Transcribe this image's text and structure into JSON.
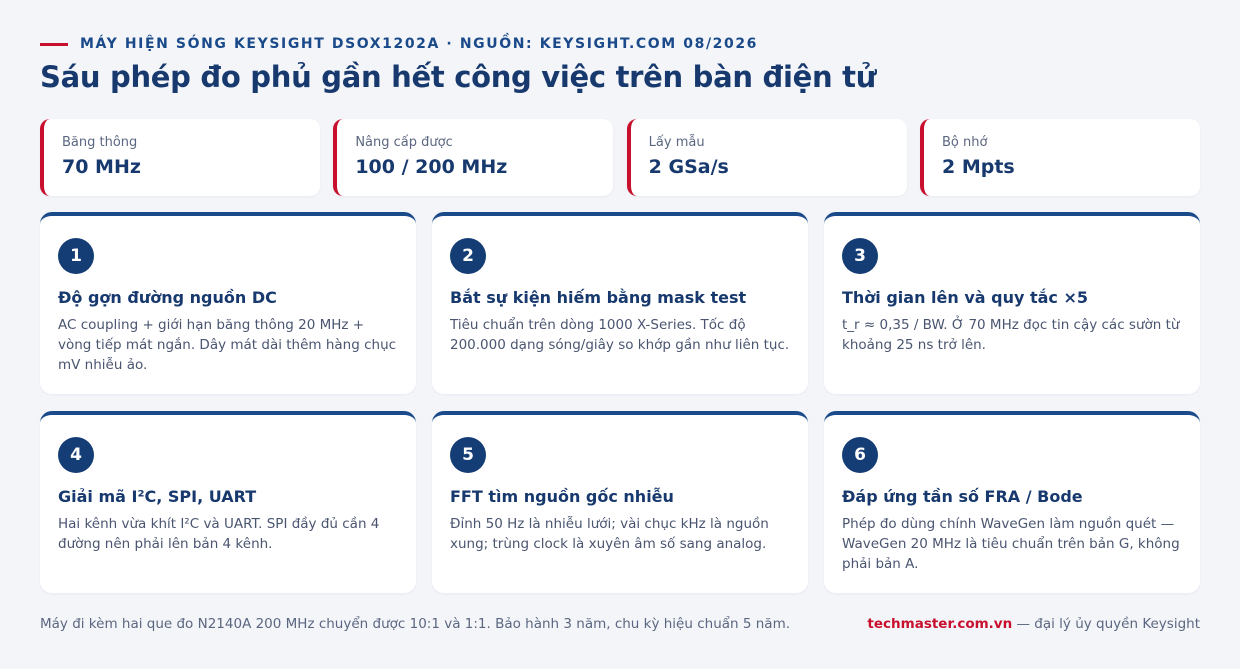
{
  "header": {
    "eyebrow": "MÁY HIỆN SÓNG KEYSIGHT DSOX1202A · NGUỒN: KEYSIGHT.COM 08/2026",
    "title": "Sáu phép đo phủ gần hết công việc trên bàn điện tử"
  },
  "stats": [
    {
      "label": "Băng thông",
      "value": "70 MHz"
    },
    {
      "label": "Nâng cấp được",
      "value": "100 / 200 MHz"
    },
    {
      "label": "Lấy mẫu",
      "value": "2 GSa/s"
    },
    {
      "label": "Bộ nhớ",
      "value": "2 Mpts"
    }
  ],
  "cards": [
    {
      "num": "1",
      "title": "Độ gợn đường nguồn DC",
      "body": "AC coupling + giới hạn băng thông 20 MHz + vòng tiếp mát ngắn. Dây mát dài thêm hàng chục mV nhiễu ảo."
    },
    {
      "num": "2",
      "title": "Bắt sự kiện hiếm bằng mask test",
      "body": "Tiêu chuẩn trên dòng 1000 X-Series. Tốc độ 200.000 dạng sóng/giây so khớp gần như liên tục."
    },
    {
      "num": "3",
      "title": "Thời gian lên và quy tắc ×5",
      "body": "t_r ≈ 0,35 / BW. Ở 70 MHz đọc tin cậy các sườn từ khoảng 25 ns trở lên."
    },
    {
      "num": "4",
      "title": "Giải mã I²C, SPI, UART",
      "body": "Hai kênh vừa khít I²C và UART. SPI đầy đủ cần 4 đường nên phải lên bản 4 kênh."
    },
    {
      "num": "5",
      "title": "FFT tìm nguồn gốc nhiễu",
      "body": "Đỉnh 50 Hz là nhiễu lưới; vài chục kHz là nguồn xung; trùng clock là xuyên âm số sang analog."
    },
    {
      "num": "6",
      "title": "Đáp ứng tần số FRA / Bode",
      "body": "Phép đo dùng chính WaveGen làm nguồn quét — WaveGen 20 MHz là tiêu chuẩn trên bản G, không phải bản A."
    }
  ],
  "footer": {
    "note": "Máy đi kèm hai que đo N2140A 200 MHz chuyển được 10:1 và 1:1. Bảo hành 3 năm, chu kỳ hiệu chuẩn 5 năm.",
    "brand": "techmaster.com.vn",
    "suffix": " — đại lý ủy quyền Keysight"
  },
  "colors": {
    "accent_red": "#c8102e",
    "navy": "#17396e",
    "card_top": "#1b4a8a",
    "background": "#f3f5f9"
  }
}
